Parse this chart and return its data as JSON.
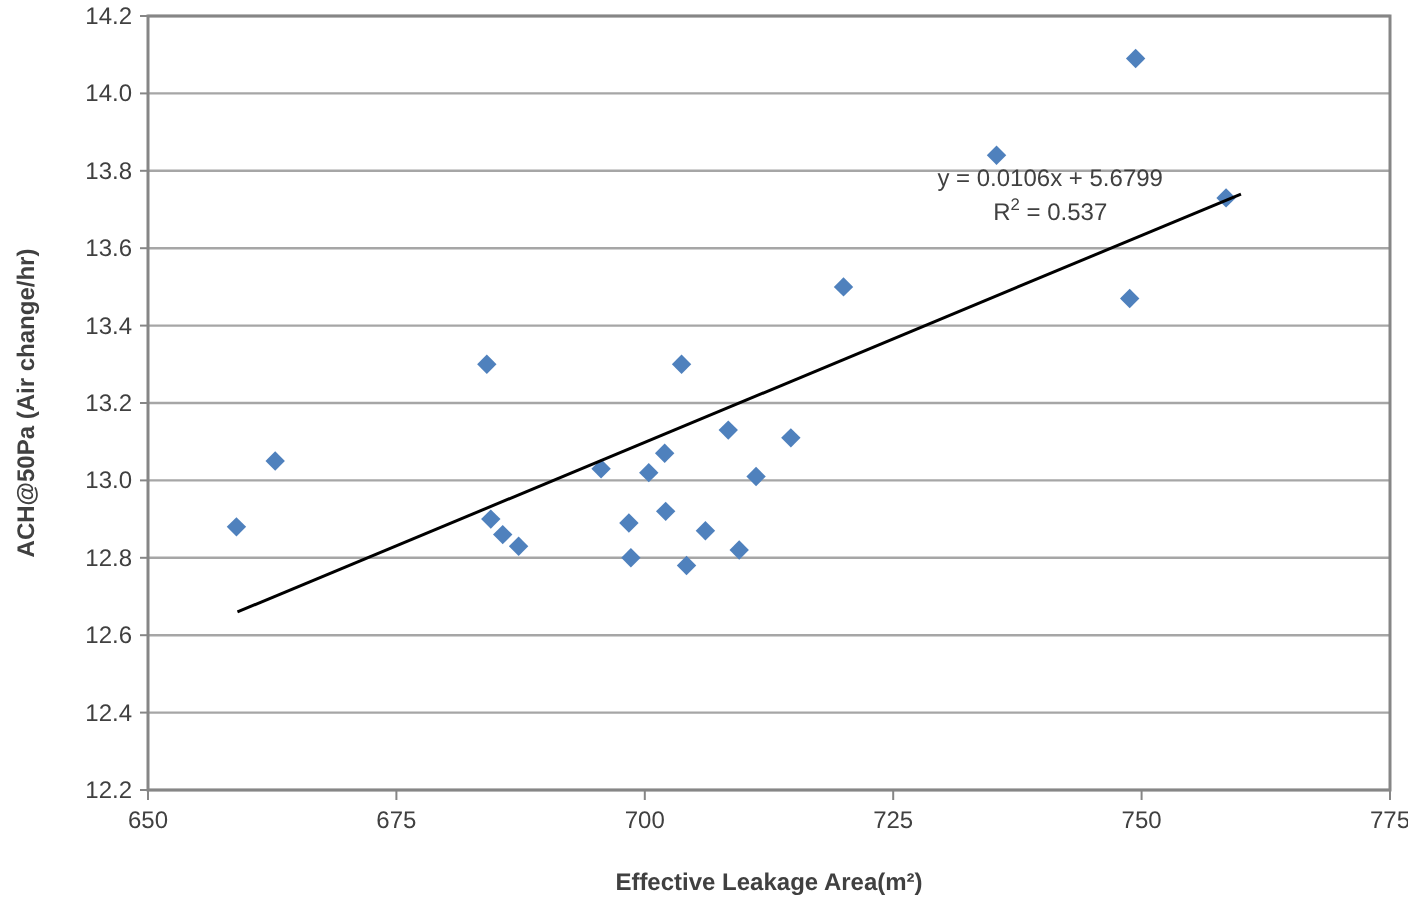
{
  "chart_data": {
    "type": "scatter",
    "xlabel": "Effective Leakage Area(m²)",
    "ylabel": "ACH@50Pa  (Air change/hr)",
    "xlim": [
      650,
      775
    ],
    "xticks": [
      650,
      675,
      700,
      725,
      750,
      775
    ],
    "ylim": [
      12.2,
      14.2
    ],
    "yticks": [
      12.2,
      12.4,
      12.6,
      12.8,
      {
        "value": 13,
        "label": "13.0"
      },
      13.2,
      13.4,
      13.6,
      13.8,
      {
        "value": 14,
        "label": "14.0"
      },
      14.2
    ],
    "grid": "y",
    "marker": "diamond",
    "series": [
      {
        "color": "#4f81bd",
        "x": [
          658.9,
          662.8,
          684.1,
          684.5,
          685.7,
          687.3,
          695.6,
          698.4,
          698.6,
          700.4,
          702.0,
          702.1,
          703.7,
          704.2,
          706.1,
          708.4,
          709.5,
          711.2,
          714.7,
          720.0,
          735.4,
          749.4,
          748.8,
          758.5
        ],
        "values": [
          12.88,
          13.05,
          13.3,
          12.9,
          12.86,
          12.83,
          13.03,
          12.89,
          12.8,
          13.02,
          13.07,
          12.92,
          13.3,
          12.78,
          12.87,
          13.13,
          12.82,
          13.01,
          13.11,
          13.5,
          13.84,
          14.09,
          13.47,
          13.73
        ]
      },
      {
        "type": "line",
        "color": "#000000",
        "marker": "none",
        "x": [
          659,
          760
        ],
        "values": [
          12.66,
          13.74
        ]
      }
    ],
    "annotations": [
      "y = 0.0106x + 5.6799",
      "R$^{2}$ = 0.537"
    ]
  }
}
